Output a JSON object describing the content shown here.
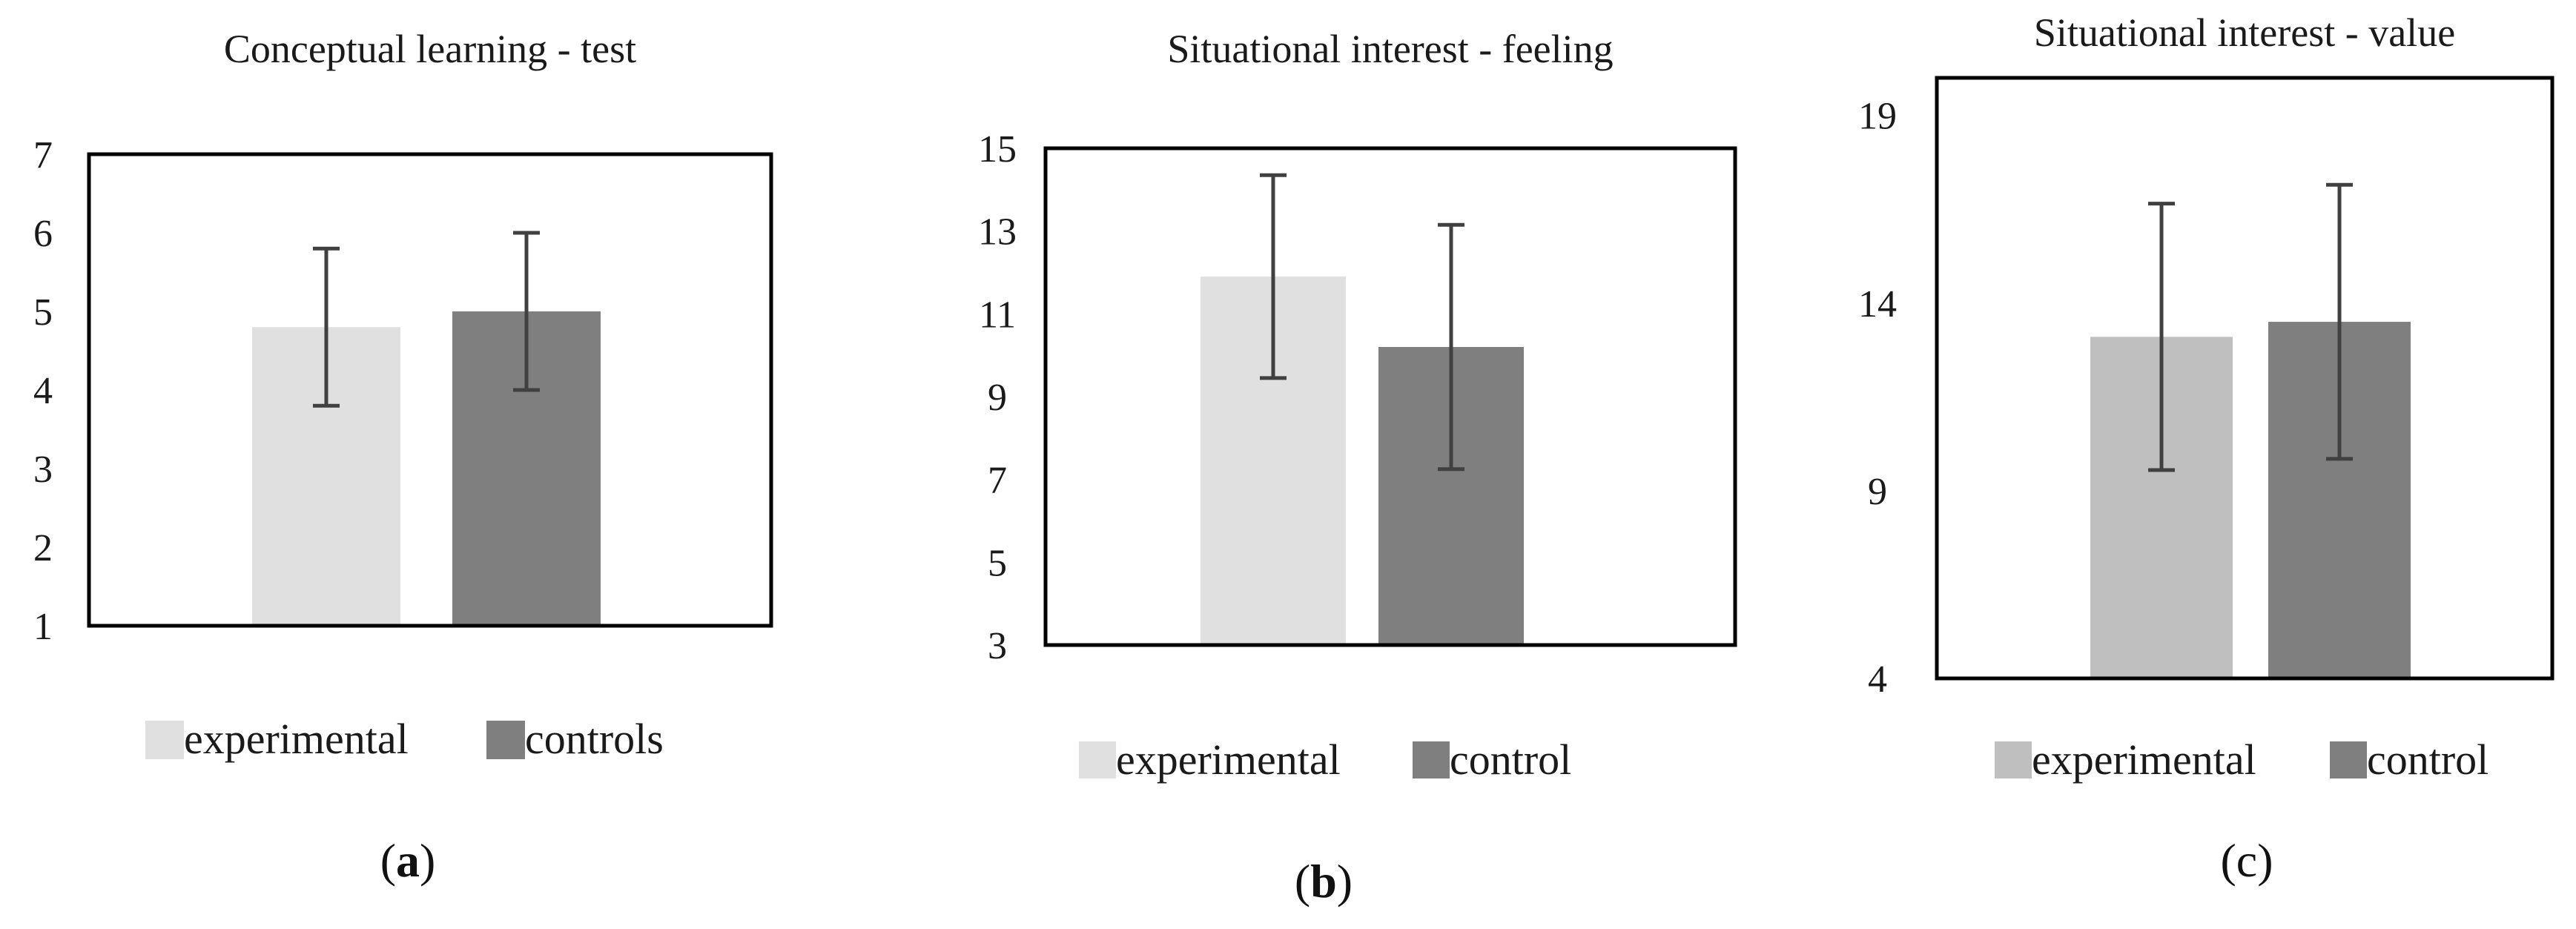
{
  "chart_data": [
    {
      "type": "bar",
      "title": "Conceptual learning - test",
      "categories": [
        "experimental",
        "controls"
      ],
      "values": [
        4.8,
        5.0
      ],
      "error": [
        1.0,
        1.0
      ],
      "ylim": [
        1,
        7
      ],
      "yticks": [
        1,
        2,
        3,
        4,
        5,
        6,
        7
      ],
      "colors": [
        "#e0e0e0",
        "#7f7f7f"
      ],
      "legend": [
        "experimental",
        "controls"
      ],
      "caption_open": "(",
      "caption_letter": "a",
      "caption_close": ")"
    },
    {
      "type": "bar",
      "title": "Situational interest - feeling",
      "categories": [
        "experimental",
        "control"
      ],
      "values": [
        11.9,
        10.2
      ],
      "error": [
        2.45,
        2.95
      ],
      "ylim": [
        3,
        15
      ],
      "yticks": [
        3,
        5,
        7,
        9,
        11,
        13,
        15
      ],
      "colors": [
        "#e0e0e0",
        "#7f7f7f"
      ],
      "legend": [
        "experimental",
        "control"
      ],
      "caption_open": "(",
      "caption_letter": "b",
      "caption_close": ")"
    },
    {
      "type": "bar",
      "title": "Situational interest - value",
      "categories": [
        "experimental",
        "control"
      ],
      "values": [
        13.1,
        13.5
      ],
      "error": [
        3.55,
        3.65
      ],
      "ylim": [
        4,
        20
      ],
      "yticks": [
        4,
        9,
        14,
        19
      ],
      "colors": [
        "#bfbfbf",
        "#7f7f7f"
      ],
      "legend": [
        "experimental",
        "control"
      ],
      "caption_open": "(",
      "caption_letter": "c",
      "caption_close": ")"
    }
  ]
}
